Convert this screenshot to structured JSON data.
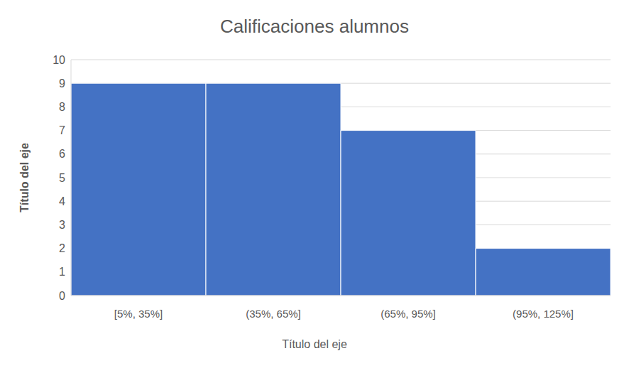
{
  "chart_data": {
    "type": "bar",
    "title": "Calificaciones alumnos",
    "x_label": "Título del eje",
    "y_label": "Título del eje",
    "categories": [
      "[5%, 35%]",
      "(35%, 65%]",
      "(65%, 95%]",
      "(95%, 125%]"
    ],
    "values": [
      9,
      9,
      7,
      2
    ],
    "color": "#4472c4",
    "ylim": [
      0,
      10
    ],
    "yticks": [
      0,
      1,
      2,
      3,
      4,
      5,
      6,
      7,
      8,
      9,
      10
    ],
    "grid": true
  }
}
